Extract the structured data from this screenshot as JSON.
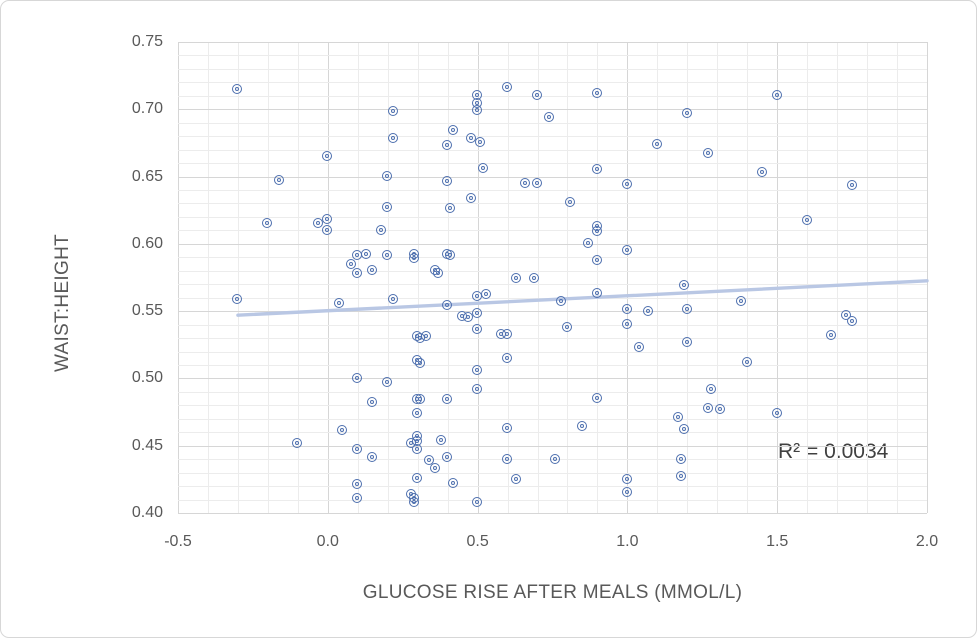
{
  "chart_data": {
    "type": "scatter",
    "title": "",
    "xlabel": "GLUCOSE RISE AFTER MEALS (MMOL/L)",
    "ylabel": "WAIST:HEIGHT",
    "annotation": "R² = 0.0034",
    "xlim": [
      -0.5,
      2.0
    ],
    "ylim": [
      0.4,
      0.75
    ],
    "x_major_step": 0.5,
    "x_minor_step": 0.1,
    "y_major_step": 0.05,
    "y_minor_step": 0.01,
    "grid": "on",
    "legend": "none",
    "x_ticks": [
      "-0.5",
      "0.0",
      "0.5",
      "1.0",
      "1.5",
      "2.0"
    ],
    "y_ticks": [
      "0.40",
      "0.45",
      "0.50",
      "0.55",
      "0.60",
      "0.65",
      "0.70",
      "0.75"
    ],
    "trendline": {
      "x1": -0.3,
      "y1": 0.547,
      "x2": 2.0,
      "y2": 0.5725
    },
    "colors": {
      "marker": "#4d6fae",
      "trend": "#b9c7e4",
      "grid_major": "#d6d6d6",
      "grid_minor": "#ececec",
      "axis_text": "#595959",
      "annotation_text": "#404040"
    },
    "points": [
      [
        -0.3,
        0.715
      ],
      [
        0.22,
        0.698
      ],
      [
        0.22,
        0.678
      ],
      [
        0.0,
        0.665
      ],
      [
        -0.16,
        0.647
      ],
      [
        0.2,
        0.65
      ],
      [
        0.2,
        0.627
      ],
      [
        -0.2,
        0.615
      ],
      [
        -0.03,
        0.615
      ],
      [
        0.0,
        0.618
      ],
      [
        0.0,
        0.61
      ],
      [
        0.18,
        0.61
      ],
      [
        0.1,
        0.591
      ],
      [
        0.13,
        0.592
      ],
      [
        0.2,
        0.591
      ],
      [
        0.29,
        0.592
      ],
      [
        0.29,
        0.589
      ],
      [
        0.08,
        0.585
      ],
      [
        0.1,
        0.578
      ],
      [
        0.15,
        0.58
      ],
      [
        0.4,
        0.592
      ],
      [
        0.41,
        0.591
      ],
      [
        0.36,
        0.58
      ],
      [
        0.37,
        0.578
      ],
      [
        0.6,
        0.716
      ],
      [
        0.5,
        0.71
      ],
      [
        0.7,
        0.71
      ],
      [
        0.9,
        0.712
      ],
      [
        0.5,
        0.704
      ],
      [
        0.5,
        0.699
      ],
      [
        0.74,
        0.694
      ],
      [
        0.42,
        0.684
      ],
      [
        0.48,
        0.678
      ],
      [
        0.51,
        0.675
      ],
      [
        0.4,
        0.673
      ],
      [
        1.1,
        0.674
      ],
      [
        0.52,
        0.656
      ],
      [
        0.9,
        0.655
      ],
      [
        0.4,
        0.646
      ],
      [
        0.66,
        0.645
      ],
      [
        0.7,
        0.645
      ],
      [
        1.0,
        0.644
      ],
      [
        0.48,
        0.634
      ],
      [
        0.81,
        0.631
      ],
      [
        0.41,
        0.626
      ],
      [
        0.9,
        0.613
      ],
      [
        0.9,
        0.609
      ],
      [
        0.87,
        0.6
      ],
      [
        1.0,
        0.595
      ],
      [
        0.9,
        0.588
      ],
      [
        0.63,
        0.574
      ],
      [
        0.69,
        0.574
      ],
      [
        1.5,
        0.71
      ],
      [
        1.2,
        0.697
      ],
      [
        1.27,
        0.667
      ],
      [
        1.45,
        0.653
      ],
      [
        1.75,
        0.643
      ],
      [
        1.6,
        0.617
      ],
      [
        -0.3,
        0.559
      ],
      [
        0.04,
        0.556
      ],
      [
        0.22,
        0.559
      ],
      [
        0.5,
        0.561
      ],
      [
        0.53,
        0.562
      ],
      [
        0.9,
        0.563
      ],
      [
        0.78,
        0.557
      ],
      [
        0.4,
        0.554
      ],
      [
        0.45,
        0.546
      ],
      [
        0.47,
        0.545
      ],
      [
        0.5,
        0.548
      ],
      [
        1.0,
        0.551
      ],
      [
        1.07,
        0.55
      ],
      [
        0.5,
        0.536
      ],
      [
        0.58,
        0.533
      ],
      [
        0.6,
        0.533
      ],
      [
        0.8,
        0.538
      ],
      [
        1.0,
        0.54
      ],
      [
        0.3,
        0.531
      ],
      [
        0.31,
        0.53
      ],
      [
        0.33,
        0.531
      ],
      [
        0.3,
        0.513
      ],
      [
        0.31,
        0.511
      ],
      [
        1.04,
        0.523
      ],
      [
        0.6,
        0.515
      ],
      [
        0.5,
        0.506
      ],
      [
        0.1,
        0.5
      ],
      [
        0.2,
        0.497
      ],
      [
        0.5,
        0.492
      ],
      [
        0.15,
        0.482
      ],
      [
        0.3,
        0.484
      ],
      [
        0.31,
        0.484
      ],
      [
        0.4,
        0.484
      ],
      [
        0.3,
        0.474
      ],
      [
        0.05,
        0.461
      ],
      [
        -0.1,
        0.452
      ],
      [
        0.3,
        0.457
      ],
      [
        0.3,
        0.453
      ],
      [
        0.28,
        0.452
      ],
      [
        0.3,
        0.447
      ],
      [
        0.1,
        0.447
      ],
      [
        0.15,
        0.441
      ],
      [
        0.34,
        0.439
      ],
      [
        0.36,
        0.433
      ],
      [
        0.3,
        0.426
      ],
      [
        0.1,
        0.421
      ],
      [
        0.28,
        0.414
      ],
      [
        0.29,
        0.411
      ],
      [
        0.29,
        0.408
      ],
      [
        0.1,
        0.411
      ],
      [
        0.38,
        0.454
      ],
      [
        0.6,
        0.463
      ],
      [
        0.85,
        0.464
      ],
      [
        0.4,
        0.441
      ],
      [
        0.6,
        0.44
      ],
      [
        0.76,
        0.44
      ],
      [
        0.63,
        0.425
      ],
      [
        0.42,
        0.422
      ],
      [
        1.0,
        0.425
      ],
      [
        1.0,
        0.415
      ],
      [
        0.5,
        0.408
      ],
      [
        0.9,
        0.485
      ],
      [
        1.19,
        0.569
      ],
      [
        1.38,
        0.557
      ],
      [
        1.2,
        0.551
      ],
      [
        1.73,
        0.547
      ],
      [
        1.75,
        0.542
      ],
      [
        1.68,
        0.532
      ],
      [
        1.2,
        0.527
      ],
      [
        1.4,
        0.512
      ],
      [
        1.28,
        0.492
      ],
      [
        1.27,
        0.478
      ],
      [
        1.31,
        0.477
      ],
      [
        1.17,
        0.471
      ],
      [
        1.19,
        0.462
      ],
      [
        1.5,
        0.474
      ],
      [
        1.18,
        0.44
      ],
      [
        1.18,
        0.427
      ]
    ]
  }
}
